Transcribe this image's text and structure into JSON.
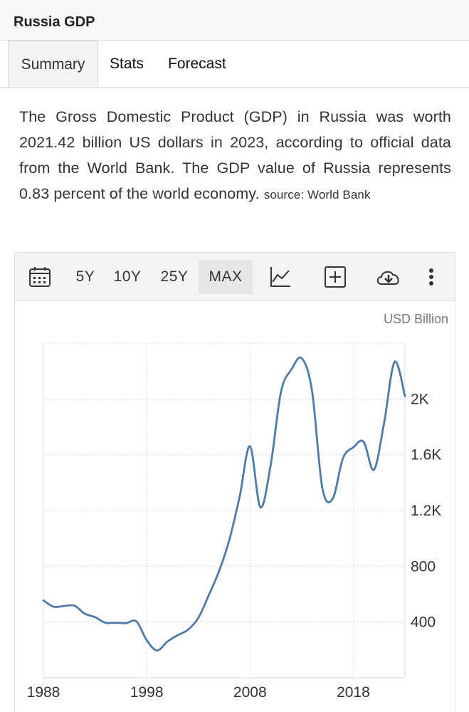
{
  "header": {
    "title": "Russia GDP"
  },
  "tabs": [
    {
      "label": "Summary",
      "active": true
    },
    {
      "label": "Stats"
    },
    {
      "label": "Forecast"
    }
  ],
  "summary": {
    "text": "The Gross Domestic Product (GDP) in Russia was worth 2021.42 billion US dollars in 2023, according to official data from the World Bank. The GDP value of Russia represents 0.83 percent of the world economy.",
    "source": "source: World Bank"
  },
  "toolbar": {
    "calendar_icon": "calendar-icon",
    "ranges": [
      "5Y",
      "10Y",
      "25Y",
      "MAX"
    ],
    "active_range": "MAX",
    "icons": [
      "line-chart-icon",
      "add-box-icon",
      "cloud-download-icon",
      "more-vertical-icon"
    ]
  },
  "chart_data": {
    "type": "line",
    "unit_label": "USD Billion",
    "line_color": "#4f7ba8",
    "x": [
      1988,
      1989,
      1990,
      1991,
      1992,
      1993,
      1994,
      1995,
      1996,
      1997,
      1998,
      1999,
      2000,
      2001,
      2002,
      2003,
      2004,
      2005,
      2006,
      2007,
      2008,
      2009,
      2010,
      2011,
      2012,
      2013,
      2014,
      2015,
      2016,
      2017,
      2018,
      2019,
      2020,
      2021,
      2022,
      2023
    ],
    "values": [
      555,
      510,
      515,
      518,
      460,
      435,
      395,
      395,
      392,
      405,
      270,
      196,
      260,
      306,
      345,
      430,
      591,
      764,
      990,
      1300,
      1661,
      1223,
      1525,
      2052,
      2210,
      2292,
      2059,
      1363,
      1283,
      1575,
      1653,
      1693,
      1493,
      1837,
      2266,
      2021
    ],
    "ylim": [
      0,
      2400
    ],
    "yticks": [
      400,
      800,
      1200,
      1600,
      2000
    ],
    "ytick_labels": [
      "400",
      "800",
      "1.2K",
      "1.6K",
      "2K"
    ],
    "xticks": [
      1988,
      1998,
      2008,
      2018
    ],
    "xtick_labels": [
      "1988",
      "1998",
      "2008",
      "2018"
    ],
    "xlim": [
      1988,
      2023
    ],
    "grid": true
  }
}
